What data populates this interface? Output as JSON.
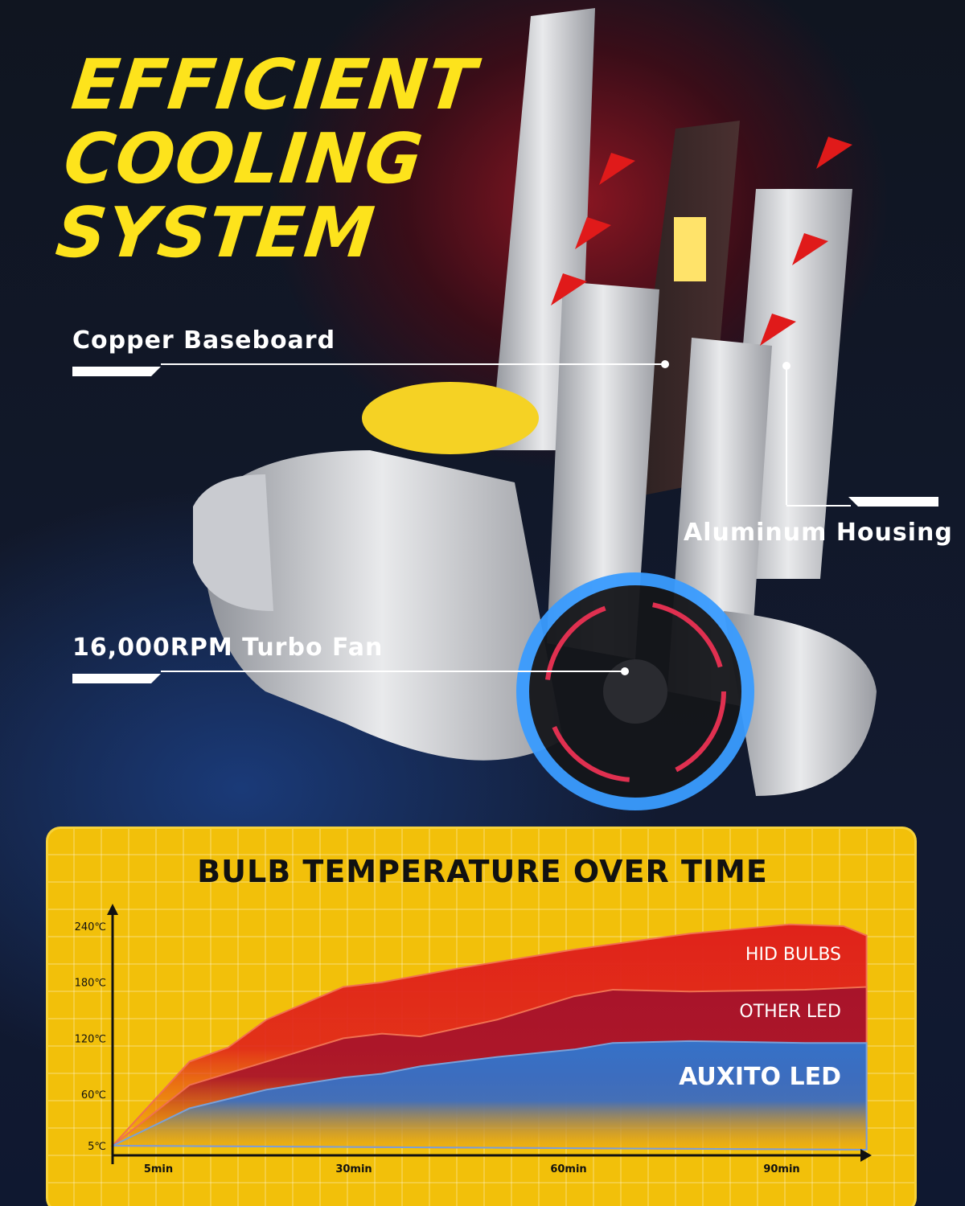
{
  "headline": [
    "EFFICIENT",
    "COOLING",
    "SYSTEM"
  ],
  "callouts": {
    "copper": "Copper Baseboard",
    "aluminum": "Aluminum Housing",
    "fan": "16,000RPM Turbo Fan"
  },
  "colors": {
    "headline": "#fde31c",
    "panel": "#f2c00a",
    "hid": "#e0221a",
    "other": "#a8142a",
    "auxito": "#3572c8"
  },
  "chart_data": {
    "type": "area",
    "title": "BULB TEMPERATURE OVER TIME",
    "xlabel": "",
    "ylabel": "",
    "x_ticks": [
      "5min",
      "30min",
      "60min",
      "90min"
    ],
    "y_ticks": [
      "5℃",
      "60℃",
      "120℃",
      "180℃",
      "240℃"
    ],
    "xlim": [
      0,
      100
    ],
    "ylim": [
      5,
      240
    ],
    "grid": true,
    "series": [
      {
        "name": "HID BULBS",
        "x": [
          0,
          10,
          15,
          20,
          30,
          35,
          45,
          60,
          75,
          88,
          95,
          98
        ],
        "values": [
          5,
          95,
          110,
          140,
          175,
          180,
          195,
          215,
          232,
          242,
          240,
          230
        ]
      },
      {
        "name": "OTHER LED",
        "x": [
          0,
          10,
          20,
          30,
          35,
          40,
          50,
          60,
          65,
          75,
          90,
          98
        ],
        "values": [
          5,
          70,
          95,
          120,
          125,
          122,
          140,
          165,
          172,
          170,
          172,
          175
        ]
      },
      {
        "name": "AUXITO LED",
        "x": [
          0,
          10,
          20,
          30,
          35,
          40,
          50,
          60,
          65,
          75,
          90,
          98
        ],
        "values": [
          5,
          45,
          65,
          78,
          82,
          90,
          100,
          108,
          115,
          117,
          115,
          115
        ]
      }
    ]
  }
}
